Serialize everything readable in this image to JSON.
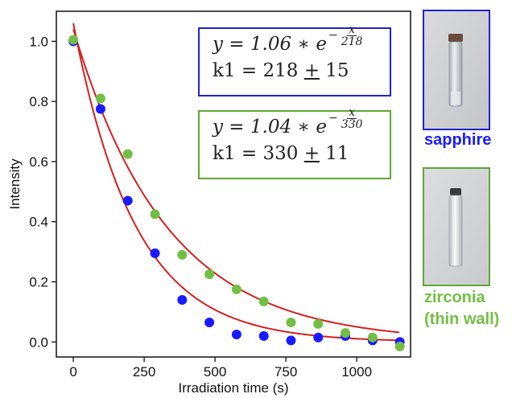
{
  "chart_data": {
    "type": "scatter",
    "xlabel": "Irradiation time (s)",
    "ylabel": "Intensity",
    "xlim": [
      -60,
      1190
    ],
    "ylim": [
      -0.05,
      1.1
    ],
    "xticks": [
      0,
      250,
      500,
      750,
      1000
    ],
    "xtick_labels": [
      "0",
      "250",
      "500",
      "750",
      "1000"
    ],
    "yticks": [
      0.0,
      0.2,
      0.4,
      0.6,
      0.8,
      1.0
    ],
    "ytick_labels": [
      "0.0",
      "0.2",
      "0.4",
      "0.6",
      "0.8",
      "1.0"
    ],
    "grid": false,
    "series": [
      {
        "name": "sapphire",
        "color": "#1a1aff",
        "x": [
          0,
          96,
          192,
          288,
          384,
          480,
          576,
          672,
          768,
          864,
          960,
          1056,
          1152
        ],
        "y": [
          1.0,
          0.775,
          0.47,
          0.295,
          0.14,
          0.065,
          0.025,
          0.02,
          0.005,
          0.015,
          0.02,
          0.005,
          0.0
        ],
        "fit": {
          "a": 1.06,
          "tau": 218,
          "color": "#d42020"
        }
      },
      {
        "name": "zirconia (thin wall)",
        "color": "#72bf44",
        "x": [
          0,
          96,
          192,
          288,
          384,
          480,
          576,
          672,
          768,
          864,
          960,
          1056,
          1152
        ],
        "y": [
          1.005,
          0.81,
          0.625,
          0.425,
          0.29,
          0.225,
          0.175,
          0.135,
          0.065,
          0.06,
          0.03,
          0.015,
          -0.015
        ],
        "fit": {
          "a": 1.04,
          "tau": 330,
          "color": "#d42020"
        }
      }
    ],
    "annotations": [
      {
        "box_color": "#2222cc",
        "equation": {
          "lhs": "y = 1.06 ∗ e",
          "exp_sign": "−",
          "exp_num": "x",
          "exp_den": "218"
        },
        "k_line": {
          "prefix": "k1 = 218 ",
          "pm": "+",
          "suffix": " 15"
        }
      },
      {
        "box_color": "#5ea832",
        "equation": {
          "lhs": "y = 1.04 ∗ e",
          "exp_sign": "−",
          "exp_num": "x",
          "exp_den": "330"
        },
        "k_line": {
          "prefix": "k1 = 330 ",
          "pm": "+",
          "suffix": " 11"
        }
      }
    ]
  },
  "samples": [
    {
      "label": "sapphire",
      "color": "#1a1aff",
      "border_color": "#2222cc"
    },
    {
      "label_line1": "zirconia",
      "label_line2": "(thin wall)",
      "color": "#72bf44",
      "border_color": "#5ea832"
    }
  ]
}
